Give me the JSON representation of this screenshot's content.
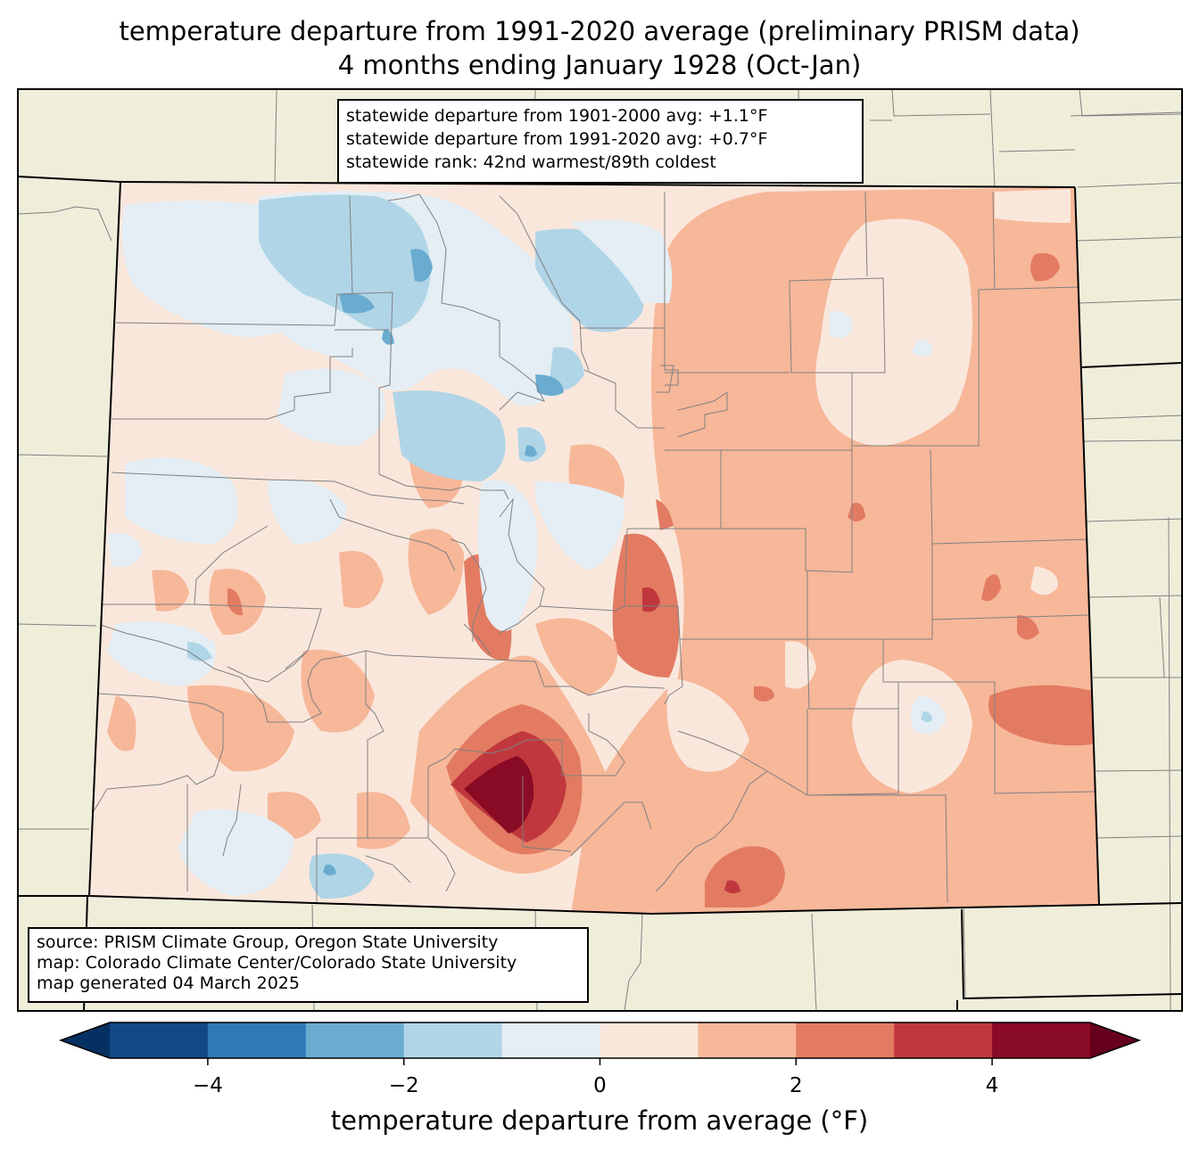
{
  "title": {
    "line1": "temperature departure from 1991-2020 average (preliminary PRISM data)",
    "line2": "4 months ending January 1928 (Oct-Jan)"
  },
  "stats_box": {
    "line1": "statewide departure from 1901-2000 avg: +1.1°F",
    "line2": "statewide departure from 1991-2020 avg: +0.7°F",
    "line3": "statewide rank: 42nd warmest/89th coldest"
  },
  "source_box": {
    "line1": "source: PRISM Climate Group, Oregon State University",
    "line2": "map: Colorado Climate Center/Colorado State University",
    "line3": "map generated 04 March 2025"
  },
  "colorbar": {
    "label": "temperature departure from average (°F)",
    "min": -5,
    "max": 5,
    "bins": [
      {
        "lo": -5,
        "hi": -4,
        "color": "#124984"
      },
      {
        "lo": -4,
        "hi": -3,
        "color": "#2f79b5"
      },
      {
        "lo": -3,
        "hi": -2,
        "color": "#6aacd0"
      },
      {
        "lo": -2,
        "hi": -1,
        "color": "#b0d5e7"
      },
      {
        "lo": -1,
        "hi": 0,
        "color": "#e4eef4"
      },
      {
        "lo": 0,
        "hi": 1,
        "color": "#fae7dc"
      },
      {
        "lo": 1,
        "hi": 2,
        "color": "#f7b799"
      },
      {
        "lo": 2,
        "hi": 3,
        "color": "#e27b62"
      },
      {
        "lo": 3,
        "hi": 4,
        "color": "#c0383d"
      },
      {
        "lo": 4,
        "hi": 5,
        "color": "#8a0b25"
      }
    ],
    "under_color": "#053061",
    "over_color": "#67001f",
    "ticks": [
      {
        "value": -4,
        "label": "−4"
      },
      {
        "value": -2,
        "label": "−2"
      },
      {
        "value": 0,
        "label": "0"
      },
      {
        "value": 2,
        "label": "2"
      },
      {
        "value": 4,
        "label": "4"
      }
    ]
  },
  "colors": {
    "land": "#efeedb",
    "county_line": "#808080",
    "state_line": "#000000"
  }
}
